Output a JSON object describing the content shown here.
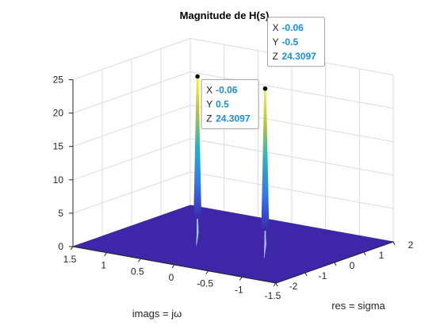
{
  "chart_data": {
    "type": "surface",
    "title": "Magnitude de H(s)",
    "xlabel": "res = sigma",
    "ylabel": "imags = jω",
    "xlim": [
      -2,
      2
    ],
    "ylim": [
      -1.5,
      1.5
    ],
    "zlim": [
      0,
      25
    ],
    "x_ticks": [
      "-2",
      "-1",
      "0",
      "1",
      "2"
    ],
    "y_ticks": [
      "1.5",
      "1",
      "0.5",
      "0",
      "-0.5",
      "-1",
      "-1.5"
    ],
    "z_ticks": [
      "0",
      "5",
      "10",
      "15",
      "20",
      "25"
    ],
    "grid": true,
    "colormap": "parula",
    "peaks": [
      {
        "x": -0.06,
        "y": 0.5,
        "z": 24.3097
      },
      {
        "x": -0.06,
        "y": -0.5,
        "z": 24.3097
      }
    ],
    "datatips": [
      {
        "x_key": "X",
        "x_val": "-0.06",
        "y_key": "Y",
        "y_val": "0.5",
        "z_key": "Z",
        "z_val": "24.3097"
      },
      {
        "x_key": "X",
        "x_val": "-0.06",
        "y_key": "Y",
        "y_val": "-0.5",
        "z_key": "Z",
        "z_val": "24.3097"
      }
    ]
  }
}
